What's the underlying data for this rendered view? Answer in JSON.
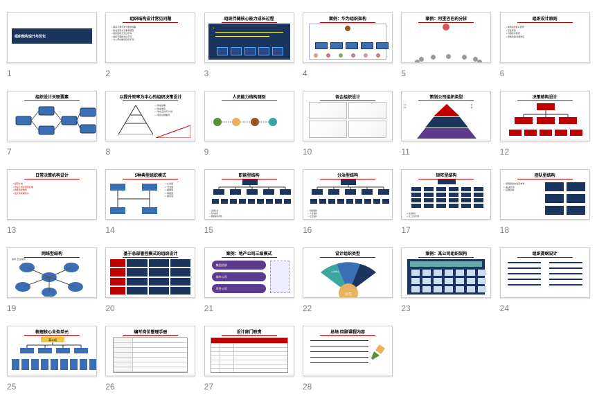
{
  "grid_columns": 6,
  "thumb_width": 130,
  "thumb_height": 73,
  "number_color": "#808080",
  "number_fontsize": 12,
  "title_fontsize": 6,
  "body_fontsize": 3,
  "colors": {
    "dark_blue": "#1b355f",
    "mid_blue": "#3b6fb5",
    "red": "#c00000",
    "purple": "#5b3a8f",
    "orange": "#e6b35c",
    "yellow": "#f2c744",
    "green": "#5a8f3c",
    "teal": "#3aa6a0",
    "brown": "#8a5a2c",
    "border": "#cccccc",
    "grey": "#808080",
    "lightgrey": "#e5e5e5"
  },
  "slides": [
    {
      "n": 1,
      "kind": "cover",
      "title": "组织结构设计与优化"
    },
    {
      "n": 2,
      "kind": "bullets",
      "title": "组织结构设计常见问题",
      "bullets": [
        "横系不再与学习能创造事",
        "职责范围交叉重叠项目",
        "组织结构方式过不停",
        "组织管理模式过不停",
        "分公司化做项目化不停"
      ]
    },
    {
      "n": 3,
      "kind": "image-dark",
      "title": "组织伴随核心能力成长过程"
    },
    {
      "n": 4,
      "kind": "org-photo",
      "title": "案例：华为组织架构"
    },
    {
      "n": 5,
      "kind": "org-photo2",
      "title": "案例：阿里巴巴的分拆"
    },
    {
      "n": 6,
      "kind": "bullets",
      "title": "组织设计原则",
      "bullets": [
        "快跑运给客户原则",
        "可控原则",
        "内部的平衡则",
        "视频约后/议能效应"
      ]
    },
    {
      "n": 7,
      "kind": "flow-blue",
      "title": "组织设计关联要素"
    },
    {
      "n": 8,
      "kind": "pyramid-white",
      "title": "以提升效率为中心的组织决策设计",
      "side": [
        "快速决策",
        "快速响应",
        "零在工作节 计划",
        "项目试规略评"
      ]
    },
    {
      "n": 9,
      "kind": "dots",
      "title": "人员能力结构测别"
    },
    {
      "n": 10,
      "kind": "four-panel",
      "title": "各企组织设计"
    },
    {
      "n": 11,
      "kind": "pyramid-color",
      "title": "策划公司组织类型"
    },
    {
      "n": 12,
      "kind": "tree-red",
      "title": "决策结构设计"
    },
    {
      "n": 13,
      "kind": "bullets-red",
      "title": "日常决策机构设计",
      "bullets": [
        "经营计划",
        "作品上线定项目标准",
        "剩余位标准则",
        "最大列视制作价"
      ]
    },
    {
      "n": 14,
      "kind": "bus",
      "title": "5种典型组织模式",
      "side": [
        "仁合型",
        "分治型",
        "超降型",
        "网络型",
        "团队型"
      ]
    },
    {
      "n": 15,
      "kind": "tree-blue",
      "title": "职能型结构",
      "below": [
        "法则信息",
        "条约保持",
        "网络保时调整"
      ]
    },
    {
      "n": 16,
      "kind": "tree-blue",
      "title": "分治型结构",
      "below": [
        "规则通建",
        "人束通建",
        "法法保护"
      ]
    },
    {
      "n": 17,
      "kind": "matrix",
      "title": "矩阵型结构",
      "below": [
        "资源限用",
        "员工方序管理"
      ]
    },
    {
      "n": 18,
      "kind": "bullets-beside",
      "title": "团队型结构",
      "bullets": [
        "项层随创出议定参考",
        "总决定顶",
        "应属达提"
      ],
      "blocks": 6
    },
    {
      "n": 19,
      "kind": "network",
      "title": "网络型结构",
      "sub": "案例: 日企案例"
    },
    {
      "n": 20,
      "kind": "redblue",
      "title": "基于总部管控模式的组织设计"
    },
    {
      "n": 21,
      "kind": "purple",
      "title": "案例：地产公司三级模式",
      "items": [
        "集团总部",
        "城市公司",
        "项目公司"
      ]
    },
    {
      "n": 22,
      "kind": "fan",
      "title": "设计组织类型",
      "center": "公司",
      "segs": [
        "人资中心",
        "业务",
        "职能"
      ]
    },
    {
      "n": 23,
      "kind": "building",
      "title": "案例：某公司组织架构"
    },
    {
      "n": 24,
      "kind": "twocol",
      "title": "组织提纲设计"
    },
    {
      "n": 25,
      "kind": "wide-tree",
      "title": "梳理核心业务单元",
      "top": "某公组"
    },
    {
      "n": 26,
      "kind": "form",
      "title": "编写岗位管理手册"
    },
    {
      "n": 27,
      "kind": "table",
      "title": "设计部门职责"
    },
    {
      "n": 28,
      "kind": "lines",
      "title": "总结·回顾课程内容"
    }
  ]
}
